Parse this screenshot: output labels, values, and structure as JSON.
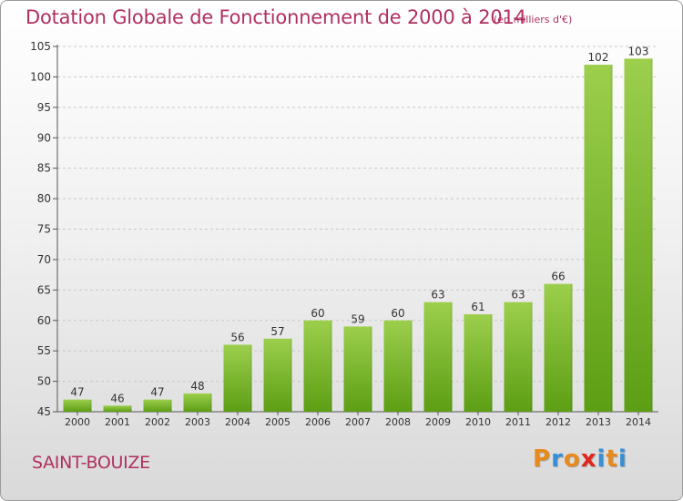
{
  "header": {
    "title": "Dotation Globale de Fonctionnement de 2000 à 2014",
    "unit": "(en milliers d'€)"
  },
  "footer": {
    "commune": "SAINT-BOUIZE",
    "logo_letters": [
      "P",
      "r",
      "o",
      "x",
      "i",
      "t",
      "i"
    ],
    "logo_colors": [
      "#e8891d",
      "#3a8fd4",
      "#e8891d",
      "#e0261f",
      "#3a8fd4",
      "#e8891d",
      "#3a8fd4"
    ]
  },
  "colors": {
    "title": "#b03060",
    "bar_top": "#9ccf4c",
    "bar_bottom": "#5c9e14",
    "axis": "#555555",
    "grid": "#c8c8c8",
    "text": "#333333"
  },
  "chart_data": {
    "type": "bar",
    "title": "Dotation Globale de Fonctionnement de 2000 à 2014",
    "subtitle": "(en milliers d'€)",
    "xlabel": "",
    "ylabel": "",
    "categories": [
      "2000",
      "2001",
      "2002",
      "2003",
      "2004",
      "2005",
      "2006",
      "2007",
      "2008",
      "2009",
      "2010",
      "2011",
      "2012",
      "2013",
      "2014"
    ],
    "values": [
      47,
      46,
      47,
      48,
      56,
      57,
      60,
      59,
      60,
      63,
      61,
      63,
      66,
      102,
      103
    ],
    "ylim": [
      45,
      105
    ],
    "yticks": [
      45,
      50,
      55,
      60,
      65,
      70,
      75,
      80,
      85,
      90,
      95,
      100,
      105
    ],
    "grid": true,
    "data_labels": true
  }
}
